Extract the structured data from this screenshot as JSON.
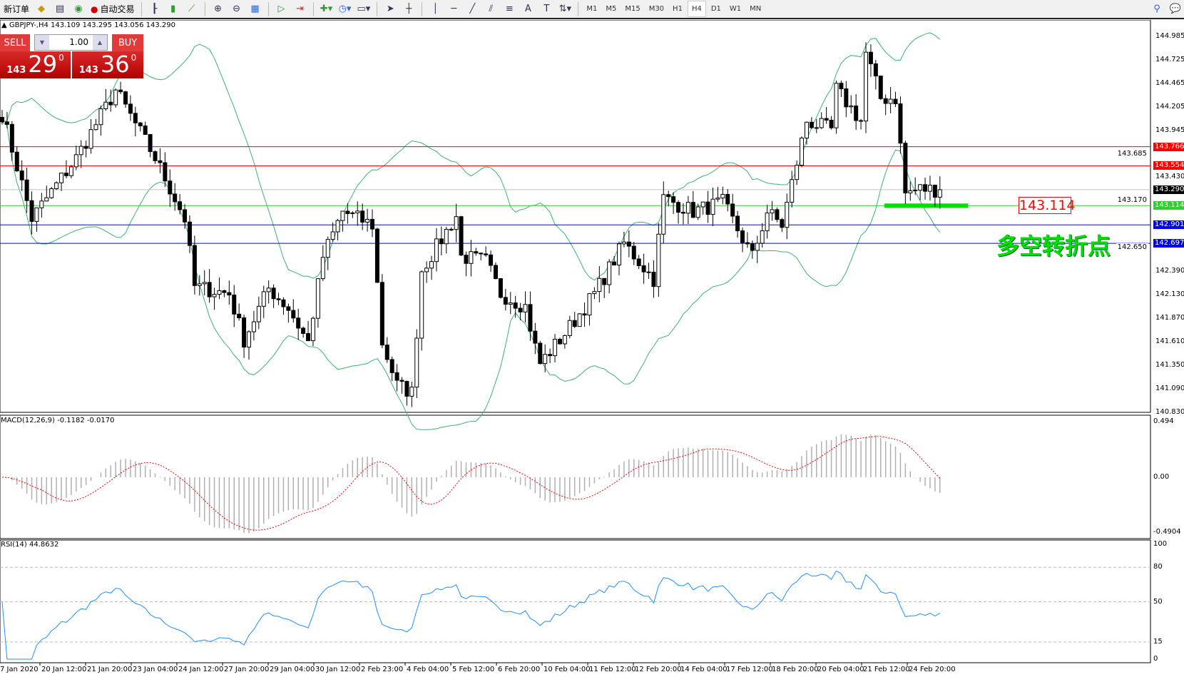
{
  "toolbar": {
    "new_order": "新订单",
    "auto_trading": "自动交易",
    "timeframes": [
      "M1",
      "M5",
      "M15",
      "M30",
      "H1",
      "H4",
      "D1",
      "W1",
      "MN"
    ],
    "active_timeframe": "H4"
  },
  "chart": {
    "header": "GBPJPY-,H4  143.109 143.295 143.056 143.290",
    "one_click": {
      "sell_label": "SELL",
      "buy_label": "BUY",
      "lot": "1.00",
      "sell_big": "143",
      "sell_main": "29",
      "sell_sup": "0",
      "buy_big": "143",
      "buy_main": "36",
      "buy_sup": "0"
    },
    "price_ticks": [
      "144.985",
      "144.725",
      "144.465",
      "144.205",
      "143.945",
      "143.685",
      "143.430",
      "143.170",
      "142.650",
      "142.390",
      "142.130",
      "141.870",
      "141.610",
      "141.350",
      "141.090",
      "140.830"
    ],
    "levels": [
      {
        "price": "143.766",
        "color": "#ff0000"
      },
      {
        "price": "143.554",
        "color": "#ff0000"
      },
      {
        "price": "143.290",
        "color": "#000000"
      },
      {
        "price": "143.114",
        "color": "#33cc33"
      },
      {
        "price": "142.901",
        "color": "#0000ff"
      },
      {
        "price": "142.697",
        "color": "#0000ff"
      }
    ],
    "annotation_price": "143.114",
    "annotation_text": "多空转折点",
    "time_labels": [
      "7 Jan 2020",
      "20 Jan 12:00",
      "21 Jan 20:00",
      "23 Jan 04:00",
      "24 Jan 12:00",
      "27 Jan 20:00",
      "29 Jan 04:00",
      "30 Jan 12:00",
      "2 Feb 23:00",
      "4 Feb 04:00",
      "5 Feb 12:00",
      "6 Feb 20:00",
      "10 Feb 04:00",
      "11 Feb 12:00",
      "12 Feb 20:00",
      "14 Feb 04:00",
      "17 Feb 12:00",
      "18 Feb 20:00",
      "20 Feb 04:00",
      "21 Feb 12:00",
      "24 Feb 20:00"
    ]
  },
  "macd": {
    "title": "MACD(12,26,9) -0.1182 -0.0170",
    "ticks": [
      "0.494",
      "0.00",
      "-0.4904"
    ]
  },
  "rsi": {
    "title": "RSI(14) 44.8632",
    "ticks": [
      "100",
      "80",
      "50",
      "15",
      "0"
    ]
  },
  "chart_data": {
    "type": "candlestick",
    "symbol": "GBPJPY",
    "timeframe": "H4",
    "ylim": [
      140.83,
      144.985
    ],
    "close_path": [
      [
        0,
        144.13
      ],
      [
        6,
        142.97
      ],
      [
        15,
        143.64
      ],
      [
        23,
        144.39
      ],
      [
        31,
        143.64
      ],
      [
        37,
        142.97
      ],
      [
        39,
        142.22
      ],
      [
        46,
        142.14
      ],
      [
        49,
        141.63
      ],
      [
        54,
        142.2
      ],
      [
        58,
        141.98
      ],
      [
        62,
        141.6
      ],
      [
        65,
        142.55
      ],
      [
        69,
        143.05
      ],
      [
        75,
        142.9
      ],
      [
        77,
        141.6
      ],
      [
        80,
        141.13
      ],
      [
        83,
        141.05
      ],
      [
        85,
        142.4
      ],
      [
        92,
        143.0
      ],
      [
        93,
        142.55
      ],
      [
        98,
        142.5
      ],
      [
        101,
        142.14
      ],
      [
        106,
        142.0
      ],
      [
        108,
        141.55
      ],
      [
        109,
        141.37
      ],
      [
        114,
        141.7
      ],
      [
        120,
        142.14
      ],
      [
        126,
        142.7
      ],
      [
        132,
        142.3
      ],
      [
        134,
        143.2
      ],
      [
        140,
        143.05
      ],
      [
        146,
        143.15
      ],
      [
        152,
        142.55
      ],
      [
        155,
        143.05
      ],
      [
        158,
        142.9
      ],
      [
        163,
        144.05
      ],
      [
        168,
        143.95
      ],
      [
        169,
        144.4
      ],
      [
        174,
        144.05
      ],
      [
        175,
        144.8
      ],
      [
        178,
        144.3
      ],
      [
        181,
        144.3
      ],
      [
        183,
        143.25
      ],
      [
        186,
        143.3
      ],
      [
        190,
        143.29
      ]
    ],
    "indicators": [
      "Bollinger Bands(20,2)",
      "MACD(12,26,9)",
      "RSI(14)"
    ]
  }
}
